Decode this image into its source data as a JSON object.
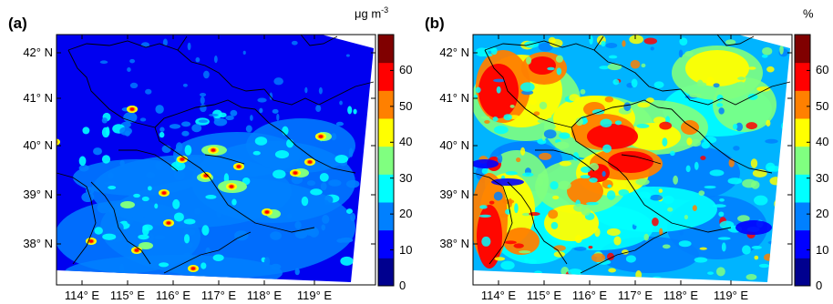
{
  "colors": [
    "#00008f",
    "#0000ff",
    "#0080ff",
    "#00ffff",
    "#80ff80",
    "#ffff00",
    "#ff8000",
    "#ff0000",
    "#800000"
  ],
  "panels": [
    {
      "label": "(a)",
      "unit": "μg m",
      "unit_sup": "-3",
      "cbar_ticks": [
        "0",
        "10",
        "20",
        "30",
        "40",
        "50",
        "60"
      ],
      "background": "#0000f0"
    },
    {
      "label": "(b)",
      "unit": "%",
      "unit_sup": "",
      "cbar_ticks": [
        "0",
        "10",
        "20",
        "30",
        "40",
        "50",
        "60"
      ],
      "background": "#00b4ff"
    }
  ],
  "lat_ticks": [
    "42° N",
    "41° N",
    "40° N",
    "39° N",
    "38° N"
  ],
  "lon_ticks": [
    "114° E",
    "115° E",
    "116° E",
    "117° E",
    "118° E",
    "119° E"
  ]
}
